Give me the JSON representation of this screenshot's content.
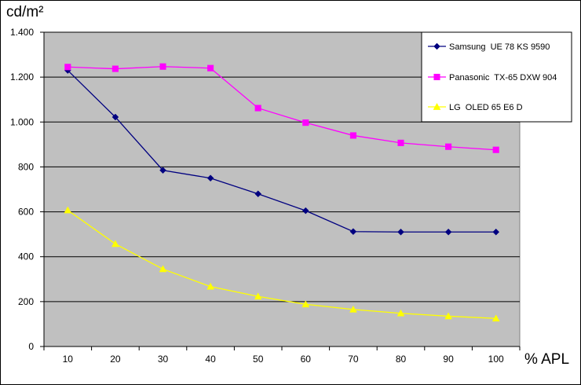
{
  "chart_data": {
    "type": "line",
    "ylabel": "cd/m²",
    "xlabel": "% APL",
    "x": [
      10,
      20,
      30,
      40,
      50,
      60,
      70,
      80,
      90,
      100
    ],
    "ylim": [
      0,
      1400
    ],
    "yticks": [
      0,
      200,
      400,
      600,
      800,
      1000,
      1200,
      1400
    ],
    "ytick_labels": [
      "0",
      "200",
      "400",
      "600",
      "800",
      "1.000",
      "1.200",
      "1.400"
    ],
    "grid": true,
    "legend_position": "top-right",
    "plot_background": "#c0c0c0",
    "series": [
      {
        "name": "Samsung  UE 78 KS 9590",
        "color": "#000080",
        "marker": "diamond",
        "values": [
          1230,
          1022,
          785,
          750,
          680,
          605,
          512,
          510,
          510,
          510
        ]
      },
      {
        "name": "Panasonic  TX-65 DXW 904",
        "color": "#ff00ff",
        "marker": "square",
        "values": [
          1245,
          1237,
          1247,
          1240,
          1062,
          997,
          940,
          907,
          890,
          876
        ]
      },
      {
        "name": "LG  OLED 65 E6 D",
        "color": "#ffff00",
        "marker": "triangle",
        "values": [
          607,
          457,
          345,
          267,
          223,
          188,
          165,
          148,
          135,
          125
        ]
      }
    ]
  }
}
